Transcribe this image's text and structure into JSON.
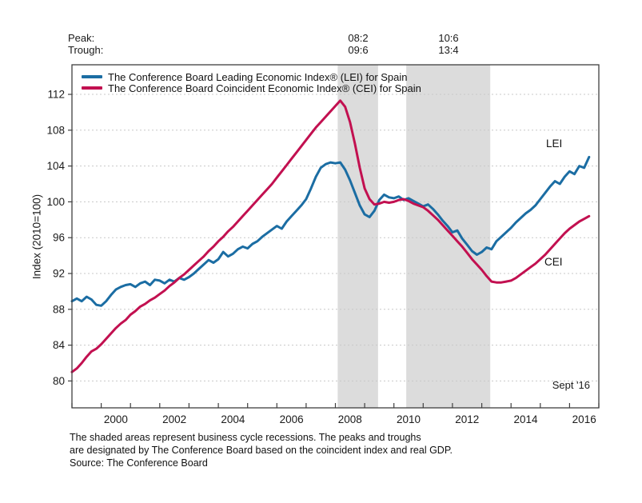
{
  "header": {
    "peak_label": "Peak:",
    "trough_label": "Trough:",
    "recession_markers": [
      {
        "peak": "08:2",
        "trough": "09:6"
      },
      {
        "peak": "10:6",
        "trough": "13:4"
      }
    ]
  },
  "legend": {
    "items": [
      {
        "label": "The Conference Board Leading Economic Index® (LEI) for Spain",
        "color": "#1b6da3"
      },
      {
        "label": "The Conference Board Coincident Economic Index® (CEI) for Spain",
        "color": "#c21050"
      }
    ]
  },
  "annotations": {
    "lei_line_label": "LEI",
    "cei_line_label": "CEI",
    "latest_point_label": "Sept '16"
  },
  "footnote": {
    "line1": "The shaded areas represent business cycle recessions. The peaks and troughs",
    "line2": "are designated by The Conference Board based on the coincident index and real GDP.",
    "line3": "Source: The Conference Board"
  },
  "chart_data": {
    "type": "line",
    "title": "",
    "xlabel": "",
    "ylabel": "Index (2010=100)",
    "xlim": [
      1999,
      2017
    ],
    "ylim": [
      77,
      115.3
    ],
    "yticks": [
      80,
      84,
      88,
      92,
      96,
      100,
      104,
      108,
      112
    ],
    "xtick_labels": [
      2000,
      2002,
      2004,
      2006,
      2008,
      2010,
      2012,
      2014,
      2016
    ],
    "grid": "horizontal-dotted",
    "legend_position": "top-left-inside",
    "band_color": "#dcdcdc",
    "grid_color": "#c8c8c8",
    "frame_color": "#3f3f3f",
    "recession_bands": [
      [
        2008.08,
        2009.46
      ],
      [
        2010.42,
        2013.29
      ]
    ],
    "series": [
      {
        "name": "LEI",
        "color": "#1b6da3",
        "start": 1999.0,
        "step_years": 0.1666667,
        "values": [
          88.9,
          89.2,
          88.9,
          89.4,
          89.1,
          88.5,
          88.4,
          88.9,
          89.6,
          90.2,
          90.5,
          90.7,
          90.8,
          90.5,
          90.9,
          91.1,
          90.7,
          91.3,
          91.2,
          90.9,
          91.3,
          91.1,
          91.5,
          91.3,
          91.6,
          92.0,
          92.5,
          93.0,
          93.5,
          93.2,
          93.6,
          94.4,
          93.9,
          94.2,
          94.7,
          95.0,
          94.8,
          95.3,
          95.6,
          96.1,
          96.5,
          96.9,
          97.3,
          97.0,
          97.8,
          98.4,
          99.0,
          99.6,
          100.3,
          101.5,
          102.8,
          103.8,
          104.2,
          104.4,
          104.3,
          104.4,
          103.6,
          102.4,
          101.0,
          99.6,
          98.6,
          98.3,
          99.0,
          100.2,
          100.8,
          100.5,
          100.4,
          100.6,
          100.2,
          100.4,
          100.1,
          99.8,
          99.5,
          99.7,
          99.2,
          98.6,
          97.9,
          97.3,
          96.6,
          96.8,
          95.9,
          95.2,
          94.5,
          94.1,
          94.4,
          94.9,
          94.7,
          95.6,
          96.1,
          96.6,
          97.1,
          97.7,
          98.2,
          98.7,
          99.1,
          99.6,
          100.3,
          101.0,
          101.7,
          102.3,
          102.0,
          102.8,
          103.4,
          103.1,
          104.0,
          103.8,
          105.0
        ]
      },
      {
        "name": "CEI",
        "color": "#c21050",
        "start": 1999.0,
        "step_years": 0.1666667,
        "values": [
          81.0,
          81.4,
          82.0,
          82.7,
          83.3,
          83.6,
          84.1,
          84.7,
          85.3,
          85.9,
          86.4,
          86.8,
          87.4,
          87.8,
          88.3,
          88.6,
          89.0,
          89.3,
          89.7,
          90.1,
          90.6,
          91.0,
          91.5,
          91.9,
          92.4,
          92.9,
          93.4,
          93.9,
          94.5,
          95.0,
          95.6,
          96.1,
          96.7,
          97.2,
          97.8,
          98.4,
          99.0,
          99.6,
          100.2,
          100.8,
          101.4,
          102.0,
          102.7,
          103.4,
          104.1,
          104.8,
          105.5,
          106.2,
          106.9,
          107.6,
          108.3,
          108.9,
          109.5,
          110.1,
          110.7,
          111.3,
          110.6,
          108.9,
          106.5,
          103.8,
          101.5,
          100.3,
          99.7,
          99.8,
          100.0,
          99.9,
          100.0,
          100.2,
          100.3,
          100.1,
          99.8,
          99.6,
          99.4,
          99.0,
          98.5,
          98.0,
          97.4,
          96.8,
          96.2,
          95.6,
          95.0,
          94.3,
          93.6,
          93.0,
          92.4,
          91.7,
          91.1,
          91.0,
          91.0,
          91.1,
          91.2,
          91.5,
          91.9,
          92.3,
          92.7,
          93.1,
          93.6,
          94.1,
          94.7,
          95.3,
          95.9,
          96.5,
          97.0,
          97.4,
          97.8,
          98.1,
          98.4
        ]
      }
    ]
  }
}
